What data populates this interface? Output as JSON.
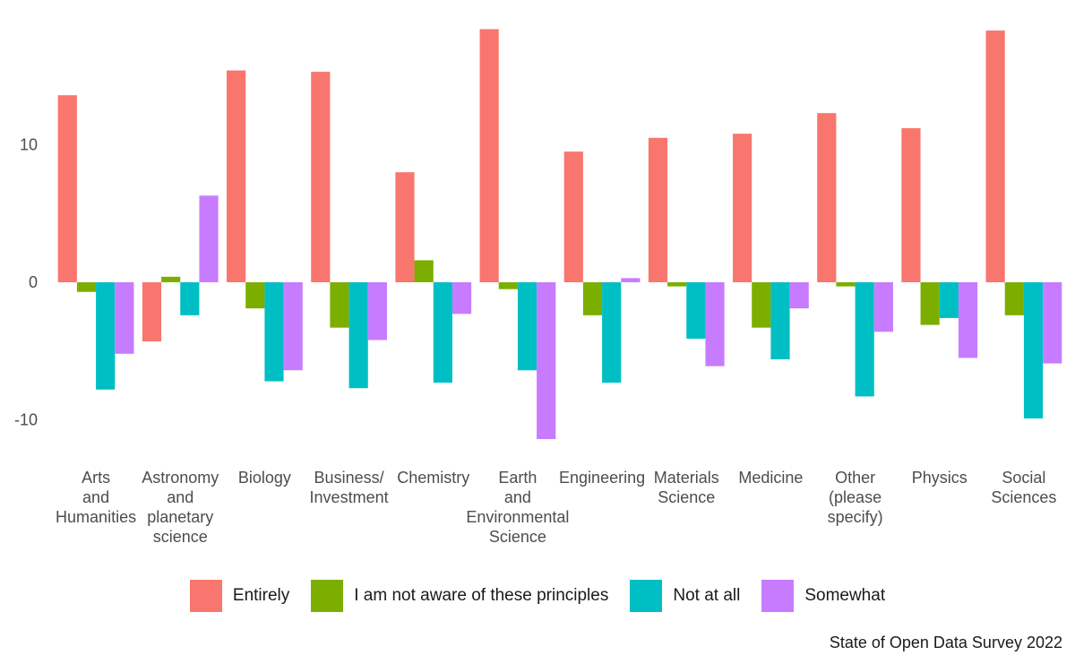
{
  "chart_data": {
    "type": "bar",
    "title": "",
    "xlabel": "",
    "ylabel": "",
    "caption": "State of Open Data Survey 2022",
    "ylim": [
      -12.2,
      19
    ],
    "yticks": [
      -10,
      0,
      10
    ],
    "grid": false,
    "legend_position": "bottom",
    "categories": [
      "Arts and Humanities",
      "Astronomy and planetary science",
      "Biology",
      "Business/ Investment",
      "Chemistry",
      "Earth and Environmental Science",
      "Engineering",
      "Materials Science",
      "Medicine",
      "Other (please specify)",
      "Physics",
      "Social Sciences"
    ],
    "category_label_lines": [
      [
        "Arts",
        "and",
        "Humanities"
      ],
      [
        "Astronomy",
        "and",
        "planetary",
        "science"
      ],
      [
        "Biology"
      ],
      [
        "Business/",
        "Investment"
      ],
      [
        "Chemistry"
      ],
      [
        "Earth",
        "and",
        "Environmental",
        "Science"
      ],
      [
        "Engineering"
      ],
      [
        "Materials",
        "Science"
      ],
      [
        "Medicine"
      ],
      [
        "Other",
        "(please",
        "specify)"
      ],
      [
        "Physics"
      ],
      [
        "Social",
        "Sciences"
      ]
    ],
    "series": [
      {
        "name": "Entirely",
        "color": "#F8766D",
        "values": [
          13.6,
          -4.3,
          15.4,
          15.3,
          8.0,
          18.4,
          9.5,
          10.5,
          10.8,
          12.3,
          11.2,
          18.3
        ]
      },
      {
        "name": "I am not aware of these principles",
        "color": "#7CAE00",
        "values": [
          -0.7,
          0.4,
          -1.9,
          -3.3,
          1.6,
          -0.5,
          -2.4,
          -0.3,
          -3.3,
          -0.3,
          -3.1,
          -2.4
        ]
      },
      {
        "name": "Not at all",
        "color": "#00BFC4",
        "values": [
          -7.8,
          -2.4,
          -7.2,
          -7.7,
          -7.3,
          -6.4,
          -7.3,
          -4.1,
          -5.6,
          -8.3,
          -2.6,
          -9.9
        ]
      },
      {
        "name": "Somewhat",
        "color": "#C77CFF",
        "values": [
          -5.2,
          6.3,
          -6.4,
          -4.2,
          -2.3,
          -11.4,
          0.3,
          -6.1,
          -1.9,
          -3.6,
          -5.5,
          -5.9
        ]
      }
    ]
  }
}
